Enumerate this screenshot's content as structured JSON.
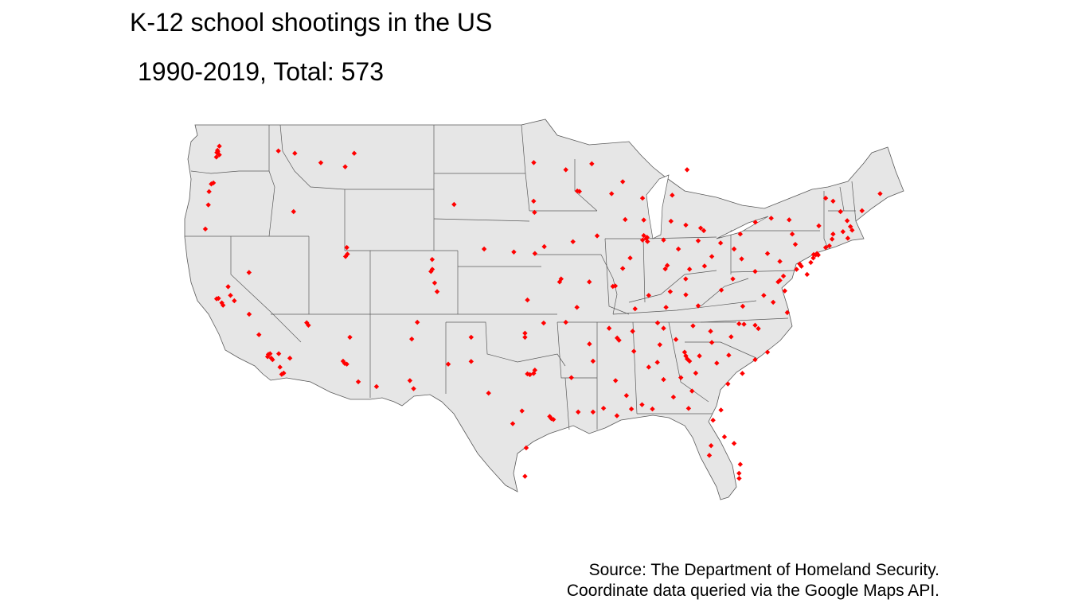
{
  "title": "K-12 school shootings in the US",
  "subtitle": "1990-2019, Total: 573",
  "caption": {
    "line1": "Source: The Department of Homeland Security.",
    "line2": "Coordinate data queried via the Google Maps API."
  },
  "colors": {
    "background": "#ffffff",
    "land_fill": "#e6e6e6",
    "border": "#5a5a5a",
    "point": "#ff0000"
  },
  "map": {
    "projection": "equirectangular",
    "region": "contiguous United States",
    "lon_range": [
      -125,
      -66.9
    ],
    "lat_range": [
      24.5,
      49.4
    ],
    "marker_shape": "diamond"
  },
  "points_lon_lat": [
    [
      -122.33,
      47.61
    ],
    [
      -122.44,
      47.25
    ],
    [
      -122.2,
      47.98
    ],
    [
      -122.35,
      47.7
    ],
    [
      -122.4,
      47.55
    ],
    [
      -122.2,
      47.4
    ],
    [
      -122.68,
      45.52
    ],
    [
      -122.85,
      45.45
    ],
    [
      -123.03,
      44.94
    ],
    [
      -123.09,
      44.05
    ],
    [
      -123.33,
      42.44
    ],
    [
      -117.43,
      47.66
    ],
    [
      -116.1,
      47.5
    ],
    [
      -114.0,
      46.87
    ],
    [
      -111.3,
      47.5
    ],
    [
      -112.03,
      46.6
    ],
    [
      -111.85,
      40.76
    ],
    [
      -111.9,
      41.2
    ],
    [
      -112.0,
      40.6
    ],
    [
      -116.2,
      43.6
    ],
    [
      -122.42,
      37.77
    ],
    [
      -122.27,
      37.8
    ],
    [
      -121.9,
      37.34
    ],
    [
      -122.0,
      37.5
    ],
    [
      -121.49,
      38.58
    ],
    [
      -121.3,
      38.0
    ],
    [
      -120.99,
      37.64
    ],
    [
      -119.79,
      36.74
    ],
    [
      -119.0,
      35.37
    ],
    [
      -118.24,
      34.05
    ],
    [
      -118.3,
      33.9
    ],
    [
      -118.1,
      34.1
    ],
    [
      -118.0,
      33.8
    ],
    [
      -117.9,
      33.7
    ],
    [
      -117.4,
      34.1
    ],
    [
      -117.16,
      32.72
    ],
    [
      -117.0,
      32.8
    ],
    [
      -117.3,
      33.2
    ],
    [
      -116.5,
      33.8
    ],
    [
      -115.14,
      36.17
    ],
    [
      -115.0,
      36.0
    ],
    [
      -119.8,
      39.53
    ],
    [
      -112.07,
      33.45
    ],
    [
      -111.9,
      33.4
    ],
    [
      -112.2,
      33.6
    ],
    [
      -110.97,
      32.22
    ],
    [
      -111.65,
      35.2
    ],
    [
      -109.5,
      31.9
    ],
    [
      -104.99,
      39.74
    ],
    [
      -105.1,
      39.6
    ],
    [
      -104.8,
      38.83
    ],
    [
      -105.0,
      40.4
    ],
    [
      -104.6,
      38.25
    ],
    [
      -106.65,
      35.08
    ],
    [
      -106.8,
      32.3
    ],
    [
      -103.7,
      33.4
    ],
    [
      -106.2,
      36.2
    ],
    [
      -106.5,
      31.76
    ],
    [
      -101.85,
      35.2
    ],
    [
      -101.85,
      33.58
    ],
    [
      -100.44,
      31.46
    ],
    [
      -97.74,
      30.27
    ],
    [
      -97.3,
      32.75
    ],
    [
      -96.8,
      32.78
    ],
    [
      -96.7,
      33.0
    ],
    [
      -97.1,
      32.7
    ],
    [
      -95.37,
      29.76
    ],
    [
      -95.5,
      29.9
    ],
    [
      -95.2,
      29.7
    ],
    [
      -98.49,
      29.42
    ],
    [
      -97.4,
      27.8
    ],
    [
      -97.5,
      25.9
    ],
    [
      -97.5,
      35.47
    ],
    [
      -97.5,
      35.2
    ],
    [
      -95.99,
      36.15
    ],
    [
      -97.3,
      37.69
    ],
    [
      -94.58,
      39.1
    ],
    [
      -94.7,
      38.9
    ],
    [
      -95.94,
      41.26
    ],
    [
      -96.7,
      40.8
    ],
    [
      -98.4,
      40.9
    ],
    [
      -100.8,
      41.1
    ],
    [
      -96.73,
      43.55
    ],
    [
      -96.8,
      44.3
    ],
    [
      -103.23,
      44.08
    ],
    [
      -96.79,
      46.88
    ],
    [
      -93.27,
      44.98
    ],
    [
      -93.1,
      44.95
    ],
    [
      -92.1,
      46.8
    ],
    [
      -94.2,
      46.4
    ],
    [
      -93.62,
      41.59
    ],
    [
      -91.67,
      41.98
    ],
    [
      -90.2,
      38.63
    ],
    [
      -90.4,
      38.6
    ],
    [
      -92.3,
      38.9
    ],
    [
      -93.3,
      37.2
    ],
    [
      -87.63,
      41.88
    ],
    [
      -87.7,
      41.8
    ],
    [
      -87.9,
      42.0
    ],
    [
      -87.6,
      41.6
    ],
    [
      -88.0,
      41.7
    ],
    [
      -89.6,
      39.8
    ],
    [
      -89.0,
      40.5
    ],
    [
      -87.9,
      43.04
    ],
    [
      -89.4,
      43.07
    ],
    [
      -88.0,
      44.5
    ],
    [
      -90.5,
      44.8
    ],
    [
      -89.6,
      45.6
    ],
    [
      -86.16,
      39.77
    ],
    [
      -86.0,
      40.0
    ],
    [
      -85.1,
      41.1
    ],
    [
      -87.5,
      38.0
    ],
    [
      -86.3,
      41.7
    ],
    [
      -85.7,
      42.96
    ],
    [
      -83.05,
      42.33
    ],
    [
      -83.3,
      42.5
    ],
    [
      -84.5,
      42.7
    ],
    [
      -85.6,
      44.7
    ],
    [
      -84.4,
      46.4
    ],
    [
      -82.99,
      39.96
    ],
    [
      -81.69,
      41.5
    ],
    [
      -84.51,
      39.1
    ],
    [
      -84.2,
      39.75
    ],
    [
      -83.5,
      41.65
    ],
    [
      -80.6,
      41.1
    ],
    [
      -82.4,
      40.6
    ],
    [
      -85.76,
      38.25
    ],
    [
      -84.5,
      38.04
    ],
    [
      -86.1,
      37.2
    ],
    [
      -83.5,
      37.3
    ],
    [
      -88.6,
      37.1
    ],
    [
      -86.78,
      36.16
    ],
    [
      -90.05,
      35.15
    ],
    [
      -89.9,
      35.0
    ],
    [
      -85.3,
      35.05
    ],
    [
      -83.92,
      35.96
    ],
    [
      -88.8,
      35.6
    ],
    [
      -86.3,
      35.8
    ],
    [
      -92.29,
      34.75
    ],
    [
      -94.2,
      36.2
    ],
    [
      -90.7,
      35.8
    ],
    [
      -92.0,
      33.6
    ],
    [
      -90.18,
      32.3
    ],
    [
      -88.7,
      34.26
    ],
    [
      -89.3,
      31.3
    ],
    [
      -88.9,
      30.4
    ],
    [
      -86.8,
      33.52
    ],
    [
      -86.3,
      32.37
    ],
    [
      -88.04,
      30.69
    ],
    [
      -87.5,
      33.2
    ],
    [
      -86.6,
      34.7
    ],
    [
      -85.5,
      31.2
    ],
    [
      -91.15,
      30.45
    ],
    [
      -90.07,
      29.95
    ],
    [
      -92.0,
      30.2
    ],
    [
      -93.75,
      32.5
    ],
    [
      -93.2,
      30.2
    ],
    [
      -84.39,
      33.75
    ],
    [
      -84.5,
      33.95
    ],
    [
      -84.2,
      33.6
    ],
    [
      -83.4,
      33.95
    ],
    [
      -81.1,
      32.08
    ],
    [
      -84.0,
      31.6
    ],
    [
      -84.9,
      32.5
    ],
    [
      -82.0,
      33.47
    ],
    [
      -80.84,
      35.23
    ],
    [
      -78.64,
      35.78
    ],
    [
      -79.8,
      36.07
    ],
    [
      -80.2,
      36.1
    ],
    [
      -77.9,
      34.2
    ],
    [
      -78.9,
      36.0
    ],
    [
      -82.5,
      35.6
    ],
    [
      -81.03,
      34.0
    ],
    [
      -79.93,
      32.78
    ],
    [
      -82.4,
      34.85
    ],
    [
      -78.9,
      33.7
    ],
    [
      -81.66,
      30.33
    ],
    [
      -82.46,
      27.95
    ],
    [
      -81.38,
      28.54
    ],
    [
      -80.19,
      25.76
    ],
    [
      -80.2,
      26.1
    ],
    [
      -80.1,
      26.7
    ],
    [
      -84.28,
      30.44
    ],
    [
      -82.3,
      29.65
    ],
    [
      -82.6,
      27.3
    ],
    [
      -80.6,
      28.1
    ],
    [
      -87.2,
      30.4
    ],
    [
      -77.44,
      37.54
    ],
    [
      -76.3,
      36.85
    ],
    [
      -79.9,
      37.27
    ],
    [
      -78.2,
      38.0
    ],
    [
      -77.04,
      38.9
    ],
    [
      -76.61,
      39.29
    ],
    [
      -76.9,
      39.0
    ],
    [
      -76.5,
      38.3
    ],
    [
      -75.55,
      39.74
    ],
    [
      -75.16,
      39.95
    ],
    [
      -75.3,
      40.1
    ],
    [
      -79.99,
      40.44
    ],
    [
      -76.9,
      40.27
    ],
    [
      -75.65,
      41.41
    ],
    [
      -80.1,
      42.1
    ],
    [
      -77.9,
      40.8
    ],
    [
      -74.17,
      40.73
    ],
    [
      -74.0,
      40.71
    ],
    [
      -73.9,
      40.8
    ],
    [
      -73.8,
      40.7
    ],
    [
      -74.2,
      40.5
    ],
    [
      -73.75,
      42.65
    ],
    [
      -76.15,
      43.05
    ],
    [
      -78.88,
      42.89
    ],
    [
      -77.6,
      43.16
    ],
    [
      -75.9,
      42.1
    ],
    [
      -74.4,
      40.2
    ],
    [
      -74.7,
      39.4
    ],
    [
      -72.9,
      41.31
    ],
    [
      -72.68,
      41.76
    ],
    [
      -73.2,
      41.2
    ],
    [
      -71.41,
      41.82
    ],
    [
      -71.06,
      42.36
    ],
    [
      -71.8,
      42.26
    ],
    [
      -71.2,
      42.6
    ],
    [
      -72.6,
      42.1
    ],
    [
      -71.46,
      42.99
    ],
    [
      -72.6,
      44.3
    ],
    [
      -73.2,
      44.5
    ],
    [
      -70.26,
      43.66
    ],
    [
      -68.8,
      44.8
    ],
    [
      -81.63,
      38.35
    ],
    [
      -80.7,
      39.1
    ],
    [
      -78.9,
      39.6
    ],
    [
      -72.0,
      43.6
    ],
    [
      -84.6,
      34.2
    ],
    [
      -83.7,
      32.8
    ]
  ]
}
